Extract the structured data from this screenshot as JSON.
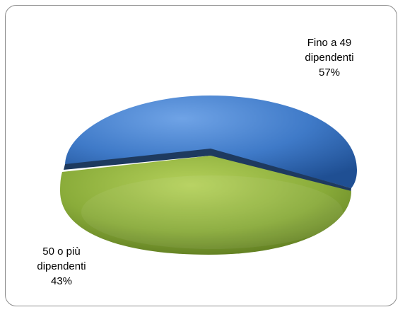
{
  "chart_data": {
    "type": "pie",
    "style": "3d-tilted",
    "title": "",
    "slices": [
      {
        "label_line1": "Fino a 49",
        "label_line2": "dipendenti",
        "value": 57,
        "value_text": "57%",
        "color": "#3f7ac8"
      },
      {
        "label_line1": "50 o più",
        "label_line2": "dipendenti",
        "value": 43,
        "value_text": "43%",
        "color": "#8aac3a"
      }
    ]
  }
}
